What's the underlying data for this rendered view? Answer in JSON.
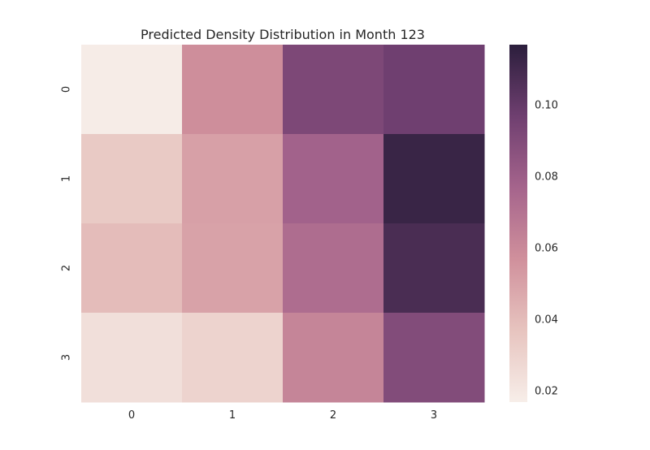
{
  "chart_data": {
    "type": "heatmap",
    "title": "Predicted Density Distribution in Month 123",
    "xlabel": "",
    "ylabel": "",
    "x_categories": [
      "0",
      "1",
      "2",
      "3"
    ],
    "y_categories": [
      "0",
      "1",
      "2",
      "3"
    ],
    "values": [
      [
        0.018,
        0.058,
        0.092,
        0.097
      ],
      [
        0.034,
        0.051,
        0.078,
        0.113
      ],
      [
        0.04,
        0.05,
        0.073,
        0.108
      ],
      [
        0.024,
        0.03,
        0.062,
        0.09
      ]
    ],
    "colorbar": {
      "min": 0.017,
      "max": 0.117,
      "ticks": [
        0.02,
        0.04,
        0.06,
        0.08,
        0.1
      ],
      "tick_labels": [
        "0.02",
        "0.04",
        "0.06",
        "0.08",
        "0.10"
      ],
      "colors": [
        "#f7eee9",
        "#e7c4bf",
        "#d0909c",
        "#a5648c",
        "#6f3f70",
        "#2b1e3c"
      ]
    },
    "grid": false,
    "legend": "colorbar-right"
  }
}
